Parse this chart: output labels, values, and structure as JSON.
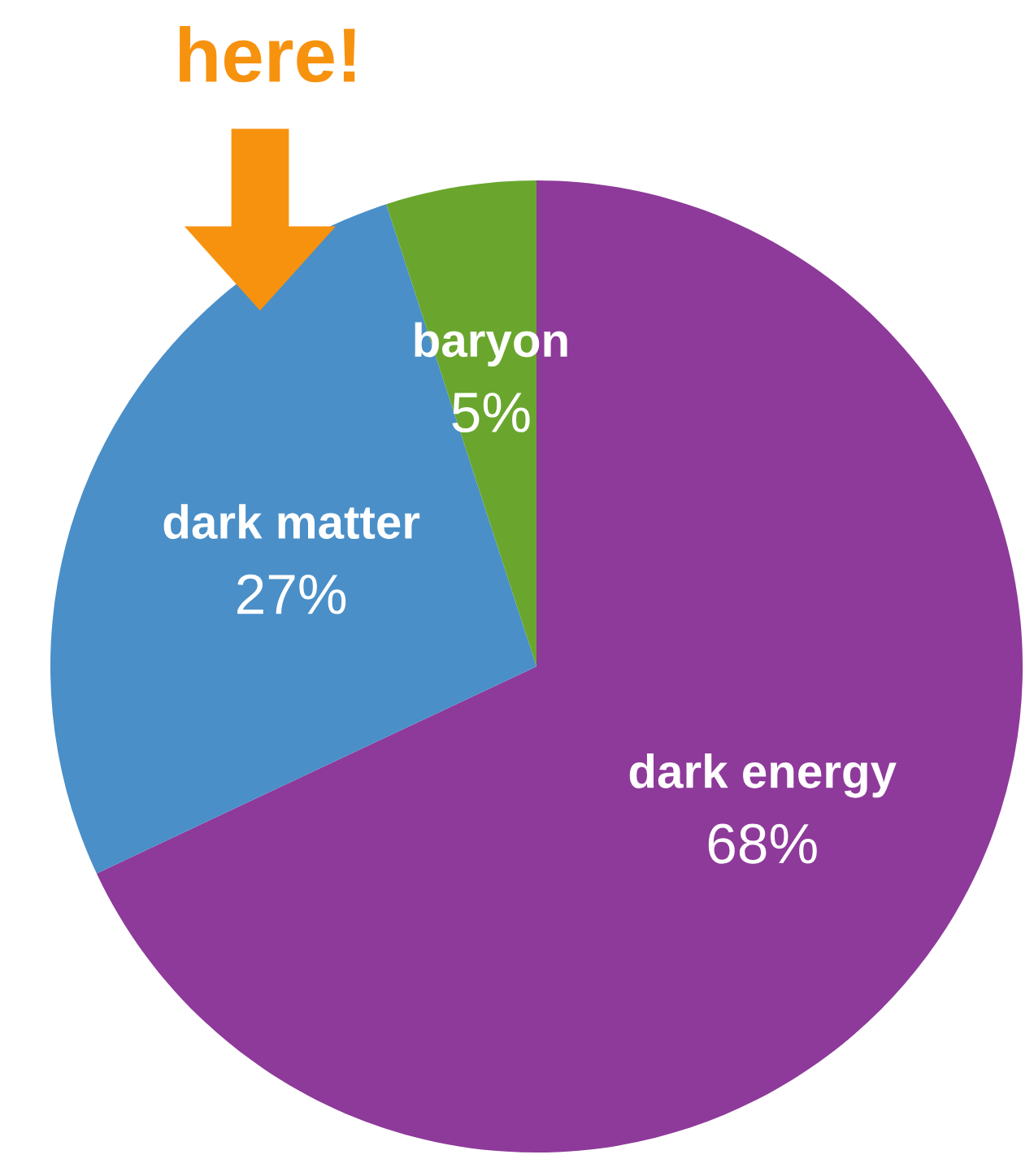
{
  "chart_data": {
    "type": "pie",
    "categories": [
      "dark energy",
      "dark matter",
      "baryon"
    ],
    "values": [
      68,
      27,
      5
    ],
    "colors": [
      "#8e3a9a",
      "#4a8fc8",
      "#6aa62e"
    ],
    "value_labels": [
      "68%",
      "27%",
      "5%"
    ],
    "annotations": [
      "here!"
    ],
    "legend": false
  }
}
